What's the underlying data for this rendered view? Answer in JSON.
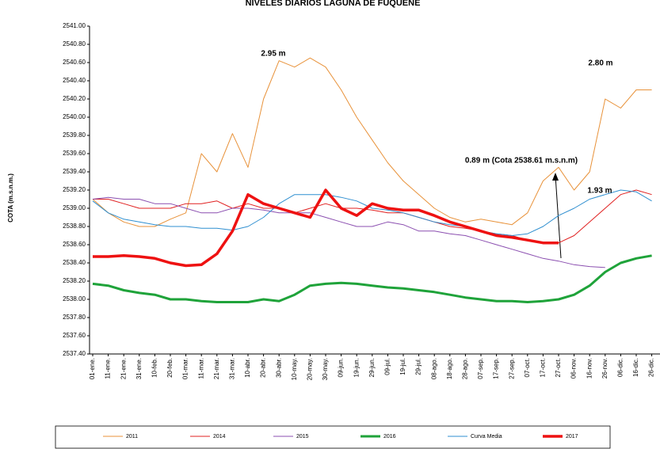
{
  "chart_data": {
    "type": "line",
    "title": "NIVELES DIARIOS LAGUNA DE FUQUENE",
    "y_label": "COTA (m.s.n.m.)",
    "annotations": [
      "2.95 m",
      "2.80 m",
      "0.89 m (Cota 2538.61 m.s.n.m)",
      "1.93 m"
    ],
    "categories": [
      "01-ene.",
      "11-ene.",
      "21-ene.",
      "31-ene.",
      "10-feb.",
      "20-feb.",
      "01-mar.",
      "11-mar.",
      "21-mar.",
      "31-mar.",
      "10-abr.",
      "20-abr.",
      "30-abr.",
      "10-may.",
      "20-may.",
      "30-may.",
      "09-jun.",
      "19-jun.",
      "29-jun.",
      "09-jul.",
      "19-jul.",
      "29-jul.",
      "08-ago.",
      "18-ago.",
      "28-ago.",
      "07-sep.",
      "17-sep.",
      "27-sep.",
      "07-oct.",
      "17-oct.",
      "27-oct.",
      "06-nov.",
      "16-nov.",
      "26-nov.",
      "06-dic.",
      "16-dic.",
      "26-dic."
    ],
    "ylim": [
      2537.4,
      2541.0
    ],
    "yticks": [
      {
        "value": 2537.4,
        "label": "2537.40"
      },
      {
        "value": 2537.6,
        "label": "2537.60"
      },
      {
        "value": 2537.8,
        "label": "2537.80"
      },
      {
        "value": 2538.0,
        "label": "2538.00"
      },
      {
        "value": 2538.2,
        "label": "2538.20"
      },
      {
        "value": 2538.4,
        "label": "2538.40"
      },
      {
        "value": 2538.6,
        "label": "2538.60"
      },
      {
        "value": 2538.8,
        "label": "2538.80"
      },
      {
        "value": 2539.0,
        "label": "2539.00"
      },
      {
        "value": 2539.2,
        "label": "2539.20"
      },
      {
        "value": 2539.4,
        "label": "2539.40"
      },
      {
        "value": 2539.6,
        "label": "2539.60"
      },
      {
        "value": 2539.8,
        "label": "2539.80"
      },
      {
        "value": 2540.0,
        "label": "2540.00"
      },
      {
        "value": 2540.2,
        "label": "2540.20"
      },
      {
        "value": 2540.4,
        "label": "2540.40"
      },
      {
        "value": 2540.6,
        "label": "2540.60"
      },
      {
        "value": 2540.8,
        "label": "2540.80"
      },
      {
        "value": 2541.0,
        "label": "2541.00"
      }
    ],
    "series": [
      {
        "name": "2011",
        "color": "#e8923a",
        "width": 1,
        "values": [
          2539.1,
          2538.95,
          2538.85,
          2538.8,
          2538.8,
          2538.88,
          2538.95,
          2539.6,
          2539.4,
          2539.82,
          2539.45,
          2540.2,
          2540.62,
          2540.55,
          2540.65,
          2540.55,
          2540.3,
          2540.0,
          2539.75,
          2539.5,
          2539.3,
          2539.15,
          2539.0,
          2538.9,
          2538.85,
          2538.88,
          2538.85,
          2538.82,
          2538.95,
          2539.3,
          2539.45,
          2539.2,
          2539.4,
          2540.2,
          2540.1,
          2540.3,
          2540.3
        ]
      },
      {
        "name": "2014",
        "color": "#e02020",
        "width": 1,
        "values": [
          2539.1,
          2539.1,
          2539.05,
          2539.0,
          2539.0,
          2539.0,
          2539.05,
          2539.05,
          2539.08,
          2539.0,
          2539.05,
          2539.0,
          2539.0,
          2538.95,
          2539.0,
          2539.05,
          2539.0,
          2539.0,
          2538.98,
          2538.95,
          2538.95,
          2538.9,
          2538.85,
          2538.8,
          2538.78,
          2538.75,
          2538.72,
          2538.7,
          2538.65,
          2538.62,
          2538.62,
          2538.7,
          2538.85,
          2539.0,
          2539.15,
          2539.2,
          2539.15
        ]
      },
      {
        "name": "2015",
        "color": "#8b4fb0",
        "width": 1,
        "values": [
          2539.1,
          2539.12,
          2539.1,
          2539.1,
          2539.05,
          2539.05,
          2539.0,
          2538.95,
          2538.95,
          2539.0,
          2539.0,
          2538.98,
          2538.95,
          2538.95,
          2538.95,
          2538.9,
          2538.85,
          2538.8,
          2538.8,
          2538.85,
          2538.82,
          2538.75,
          2538.75,
          2538.72,
          2538.7,
          2538.65,
          2538.6,
          2538.55,
          2538.5,
          2538.45,
          2538.42,
          2538.38,
          2538.36,
          2538.35,
          null,
          null,
          null
        ]
      },
      {
        "name": "2016",
        "color": "#1fa33a",
        "width": 3,
        "values": [
          2538.17,
          2538.15,
          2538.1,
          2538.07,
          2538.05,
          2538.0,
          2538.0,
          2537.98,
          2537.97,
          2537.97,
          2537.97,
          2538.0,
          2537.98,
          2538.05,
          2538.15,
          2538.17,
          2538.18,
          2538.17,
          2538.15,
          2538.13,
          2538.12,
          2538.1,
          2538.08,
          2538.05,
          2538.02,
          2538.0,
          2537.98,
          2537.98,
          2537.97,
          2537.98,
          2538.0,
          2538.05,
          2538.15,
          2538.3,
          2538.4,
          2538.45,
          2538.48
        ]
      },
      {
        "name": "Curva Media",
        "color": "#2f8fd0",
        "width": 1,
        "values": [
          2539.08,
          2538.95,
          2538.88,
          2538.85,
          2538.82,
          2538.8,
          2538.8,
          2538.78,
          2538.78,
          2538.76,
          2538.8,
          2538.9,
          2539.05,
          2539.15,
          2539.15,
          2539.15,
          2539.12,
          2539.08,
          2539.0,
          2538.98,
          2538.95,
          2538.9,
          2538.85,
          2538.82,
          2538.8,
          2538.75,
          2538.72,
          2538.7,
          2538.72,
          2538.8,
          2538.92,
          2539.0,
          2539.1,
          2539.15,
          2539.2,
          2539.18,
          2539.08
        ]
      },
      {
        "name": "2017",
        "color": "#ee1111",
        "width": 3.5,
        "values": [
          2538.47,
          2538.47,
          2538.48,
          2538.47,
          2538.45,
          2538.4,
          2538.37,
          2538.38,
          2538.5,
          2538.75,
          2539.15,
          2539.05,
          2539.0,
          2538.95,
          2538.9,
          2539.2,
          2539.0,
          2538.92,
          2539.05,
          2539.0,
          2538.98,
          2538.98,
          2538.92,
          2538.85,
          2538.8,
          2538.75,
          2538.7,
          2538.68,
          2538.65,
          2538.62,
          2538.62,
          null,
          null,
          null,
          null,
          null,
          null
        ]
      }
    ]
  }
}
